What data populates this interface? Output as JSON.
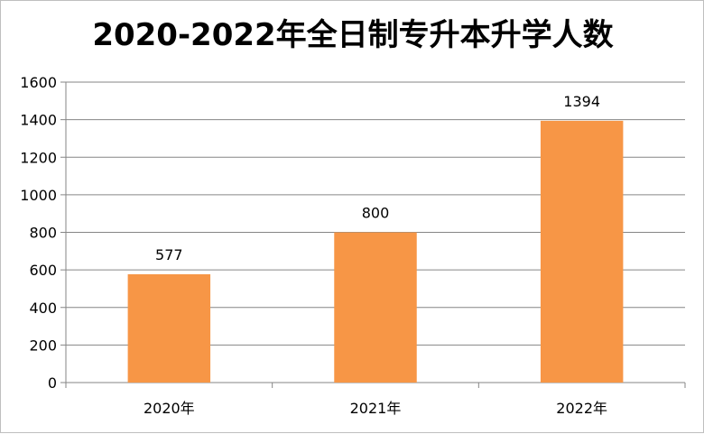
{
  "chart_data": {
    "type": "bar",
    "title": "2020-2022年全日制专升本升学人数",
    "categories": [
      "2020年",
      "2021年",
      "2022年"
    ],
    "values": [
      577,
      800,
      1394
    ],
    "data_labels": [
      "577",
      "800",
      "1394"
    ],
    "xlabel": "",
    "ylabel": "",
    "ylim": [
      0,
      1600
    ],
    "yticks": [
      0,
      200,
      400,
      600,
      800,
      1000,
      1200,
      1400,
      1600
    ],
    "ytick_labels": [
      "0",
      "200",
      "400",
      "600",
      "800",
      "1000",
      "1200",
      "1400",
      "1600"
    ],
    "grid": true,
    "legend": "none",
    "bar_color": "#f79646",
    "grid_color": "#868686"
  }
}
